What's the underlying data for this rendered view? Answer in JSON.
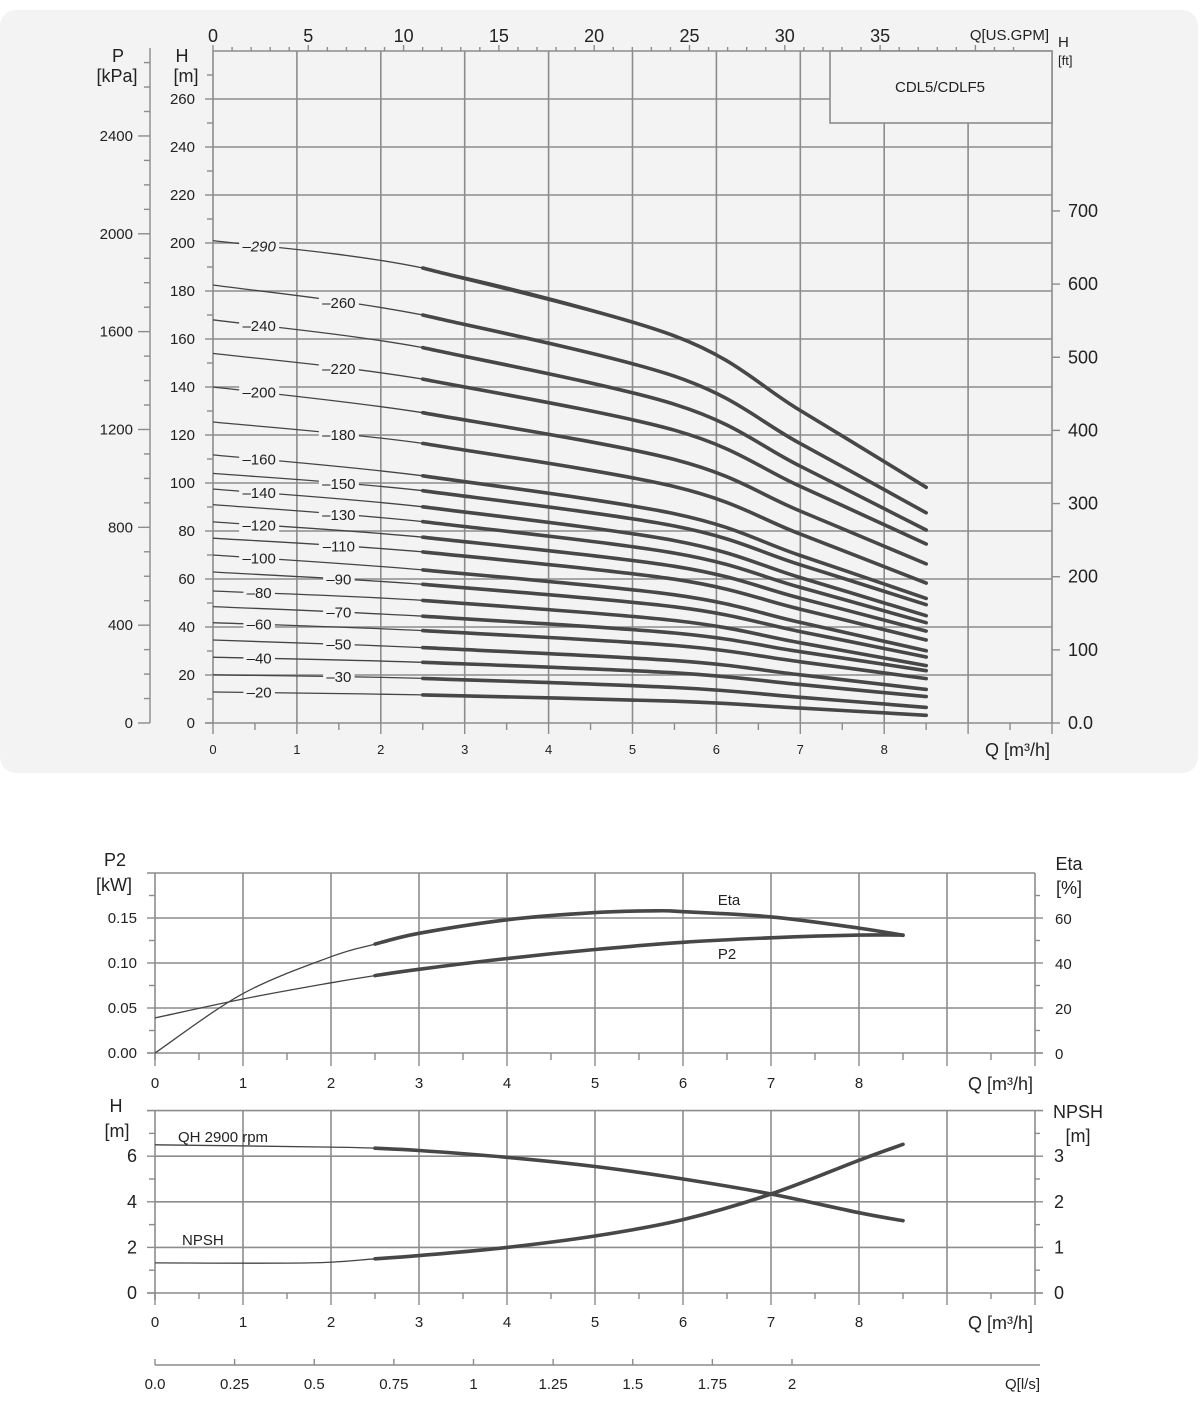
{
  "colors": {
    "panel": "#f3f3f3",
    "grid": "#8c8c8c",
    "curve": "#474747",
    "text": "#222222"
  },
  "chart_data": [
    {
      "type": "line",
      "title": "CDL5/CDLF5",
      "x_label": "Q [m³/h]",
      "x_top_label": "Q[US.GPM]",
      "y_label_left": {
        "name": "H",
        "unit": "[m]"
      },
      "y_label_pressure": {
        "name": "P",
        "unit": "[kPa]"
      },
      "y_label_right": {
        "name": "H",
        "unit": "[ft]"
      },
      "xlim": [
        0,
        10
      ],
      "ylim": [
        0,
        280
      ],
      "x_ticks": [
        0,
        1,
        2,
        3,
        4,
        5,
        6,
        7,
        8
      ],
      "y_ticks": [
        0,
        20,
        40,
        60,
        80,
        100,
        120,
        140,
        160,
        180,
        200,
        220,
        240,
        260
      ],
      "pressure_ticks": [
        0,
        400,
        800,
        1200,
        1600,
        2000,
        2400
      ],
      "ft_ticks": [
        "0.0",
        "100",
        "200",
        "300",
        "400",
        "500",
        "600",
        "700"
      ],
      "gpm_ticks": [
        0,
        5,
        10,
        15,
        20,
        25,
        30,
        35
      ],
      "grid": true,
      "recommended_range": [
        2.5,
        8.5
      ],
      "series": [
        {
          "name": "–290",
          "points": [
            [
              0,
              201
            ],
            [
              2.5,
              189.6
            ],
            [
              5.5,
              161.3
            ],
            [
              7,
              130.2
            ],
            [
              8.5,
              98.2
            ]
          ]
        },
        {
          "name": "–260",
          "points": [
            [
              0,
              182.5
            ],
            [
              2.5,
              170
            ],
            [
              5.5,
              144.5
            ],
            [
              7,
              116.4
            ],
            [
              8.5,
              87.6
            ]
          ]
        },
        {
          "name": "–240",
          "points": [
            [
              0,
              168
            ],
            [
              2.5,
              156.4
            ],
            [
              5.5,
              132.8
            ],
            [
              7,
              107
            ],
            [
              8.5,
              80.4
            ]
          ]
        },
        {
          "name": "–220",
          "points": [
            [
              0,
              154
            ],
            [
              2.5,
              143.3
            ],
            [
              5.5,
              122
            ],
            [
              7,
              98.6
            ],
            [
              8.5,
              74.6
            ]
          ]
        },
        {
          "name": "–200",
          "points": [
            [
              0,
              140
            ],
            [
              2.5,
              129.3
            ],
            [
              5.5,
              109.8
            ],
            [
              7,
              88.3
            ],
            [
              8.5,
              66.3
            ]
          ]
        },
        {
          "name": "–180",
          "points": [
            [
              0,
              125.4
            ],
            [
              2.5,
              116.5
            ],
            [
              5.5,
              98.5
            ],
            [
              7,
              78.7
            ],
            [
              8.5,
              58.3
            ]
          ]
        },
        {
          "name": "–160",
          "points": [
            [
              0,
              111.7
            ],
            [
              2.5,
              103
            ],
            [
              5.5,
              87.2
            ],
            [
              7,
              69.8
            ],
            [
              8.5,
              51.9
            ]
          ]
        },
        {
          "name": "–150",
          "points": [
            [
              0,
              104
            ],
            [
              2.5,
              96.8
            ],
            [
              5.5,
              82.1
            ],
            [
              7,
              65.9
            ],
            [
              8.5,
              49.3
            ]
          ]
        },
        {
          "name": "–140",
          "points": [
            [
              0,
              97.5
            ],
            [
              2.5,
              90.1
            ],
            [
              5.5,
              76
            ],
            [
              7,
              60.6
            ],
            [
              8.5,
              44.7
            ]
          ]
        },
        {
          "name": "–130",
          "points": [
            [
              0,
              91
            ],
            [
              2.5,
              83.9
            ],
            [
              5.5,
              70.8
            ],
            [
              7,
              56.5
            ],
            [
              8.5,
              41.8
            ]
          ]
        },
        {
          "name": "–120",
          "points": [
            [
              0,
              83.8
            ],
            [
              2.5,
              77.4
            ],
            [
              5.5,
              65.3
            ],
            [
              7,
              52
            ],
            [
              8.5,
              38.3
            ]
          ]
        },
        {
          "name": "–110",
          "points": [
            [
              0,
              77
            ],
            [
              2.5,
              71.3
            ],
            [
              5.5,
              59.9
            ],
            [
              7,
              47.4
            ],
            [
              8.5,
              34.6
            ]
          ]
        },
        {
          "name": "–100",
          "points": [
            [
              0,
              70
            ],
            [
              2.5,
              63.8
            ],
            [
              5.5,
              53.4
            ],
            [
              7,
              41.9
            ],
            [
              8.5,
              30.1
            ]
          ]
        },
        {
          "name": "–90",
          "points": [
            [
              0,
              62.9
            ],
            [
              2.5,
              57.8
            ],
            [
              5.5,
              48.4
            ],
            [
              7,
              38.1
            ],
            [
              8.5,
              27.5
            ]
          ]
        },
        {
          "name": "–80",
          "points": [
            [
              0,
              55
            ],
            [
              2.5,
              51.1
            ],
            [
              5.5,
              42.7
            ],
            [
              7,
              33.4
            ],
            [
              8.5,
              23.9
            ]
          ]
        },
        {
          "name": "–70",
          "points": [
            [
              0,
              48.5
            ],
            [
              2.5,
              44.5
            ],
            [
              5.5,
              37.5
            ],
            [
              7,
              29.7
            ],
            [
              8.5,
              21.8
            ]
          ]
        },
        {
          "name": "–60",
          "points": [
            [
              0,
              41.8
            ],
            [
              2.5,
              38.5
            ],
            [
              5.5,
              32.3
            ],
            [
              7,
              25.5
            ],
            [
              8.5,
              18.5
            ]
          ]
        },
        {
          "name": "–50",
          "points": [
            [
              0,
              34.6
            ],
            [
              2.5,
              31.4
            ],
            [
              5.5,
              26
            ],
            [
              7,
              20.1
            ],
            [
              8.5,
              14
            ]
          ]
        },
        {
          "name": "–40",
          "points": [
            [
              0,
              27.4
            ],
            [
              2.5,
              25.3
            ],
            [
              5.5,
              20.9
            ],
            [
              7,
              16
            ],
            [
              8.5,
              11
            ]
          ]
        },
        {
          "name": "–30",
          "points": [
            [
              0,
              20.1
            ],
            [
              2.5,
              18.6
            ],
            [
              5.5,
              14.8
            ],
            [
              7,
              10.7
            ],
            [
              8.5,
              6.5
            ]
          ]
        },
        {
          "name": "–20",
          "points": [
            [
              0,
              12.9
            ],
            [
              2.5,
              11.7
            ],
            [
              5.5,
              9.1
            ],
            [
              7,
              6.2
            ],
            [
              8.5,
              3.2
            ]
          ]
        }
      ]
    },
    {
      "type": "line",
      "x_label": "Q [m³/h]",
      "y_label_left": {
        "name": "P2",
        "unit": "[kW]"
      },
      "y_label_right": {
        "name": "Eta",
        "unit": "[%]"
      },
      "xlim": [
        0,
        10
      ],
      "ylim": [
        0,
        0.2
      ],
      "ylim_right": [
        0,
        80
      ],
      "x_ticks": [
        0,
        1,
        2,
        3,
        4,
        5,
        6,
        7,
        8
      ],
      "y_ticks": [
        "0.00",
        "0.05",
        "0.10",
        "0.15"
      ],
      "y_ticks_right": [
        0,
        20,
        40,
        60
      ],
      "grid": true,
      "recommended_range": [
        2.5,
        8.5
      ],
      "series": [
        {
          "name": "Eta",
          "axis": "right",
          "points": [
            [
              0,
              0
            ],
            [
              1,
              26.4
            ],
            [
              2,
              42.8
            ],
            [
              2.5,
              48.4
            ],
            [
              3,
              53.2
            ],
            [
              4,
              59.2
            ],
            [
              5,
              62.4
            ],
            [
              5.7,
              63.2
            ],
            [
              6,
              62.8
            ],
            [
              7,
              60.5
            ],
            [
              8,
              55.5
            ],
            [
              8.5,
              52.3
            ]
          ]
        },
        {
          "name": "P2",
          "axis": "left",
          "points": [
            [
              0,
              0.039
            ],
            [
              1,
              0.06
            ],
            [
              2,
              0.078
            ],
            [
              2.5,
              0.086
            ],
            [
              3,
              0.093
            ],
            [
              4,
              0.105
            ],
            [
              5,
              0.115
            ],
            [
              6,
              0.123
            ],
            [
              7,
              0.128
            ],
            [
              8,
              0.131
            ],
            [
              8.5,
              0.131
            ]
          ]
        }
      ]
    },
    {
      "type": "line",
      "x_label": "Q [m³/h]",
      "x2_label": "Q[l/s]",
      "y_label_left": {
        "name": "H",
        "unit": "[m]"
      },
      "y_label_right": {
        "name": "NPSH",
        "unit": "[m]"
      },
      "xlim": [
        0,
        10
      ],
      "ylim": [
        0,
        8
      ],
      "ylim_right": [
        0,
        4
      ],
      "x_ticks": [
        0,
        1,
        2,
        3,
        4,
        5,
        6,
        7,
        8
      ],
      "x2_ticks": [
        "0.0",
        "0.25",
        "0.5",
        "0.75",
        "1",
        "1.25",
        "1.5",
        "1.75",
        "2"
      ],
      "y_ticks": [
        0,
        2,
        4,
        6
      ],
      "y_ticks_right": [
        0,
        1,
        2,
        3
      ],
      "grid": true,
      "recommended_range": [
        2.5,
        8.5
      ],
      "series": [
        {
          "name": "QH 2900 rpm",
          "axis": "left",
          "points": [
            [
              0,
              6.5
            ],
            [
              2,
              6.4
            ],
            [
              2.5,
              6.35
            ],
            [
              3,
              6.25
            ],
            [
              4,
              5.95
            ],
            [
              5,
              5.55
            ],
            [
              6,
              5.0
            ],
            [
              7,
              4.34
            ],
            [
              8,
              3.52
            ],
            [
              8.5,
              3.17
            ]
          ]
        },
        {
          "name": "NPSH",
          "axis": "right",
          "points": [
            [
              0,
              0.66
            ],
            [
              1.75,
              0.66
            ],
            [
              2.5,
              0.75
            ],
            [
              3,
              0.82
            ],
            [
              4,
              1.0
            ],
            [
              5,
              1.25
            ],
            [
              6,
              1.61
            ],
            [
              7,
              2.17
            ],
            [
              8,
              2.91
            ],
            [
              8.5,
              3.26
            ]
          ]
        }
      ]
    }
  ]
}
